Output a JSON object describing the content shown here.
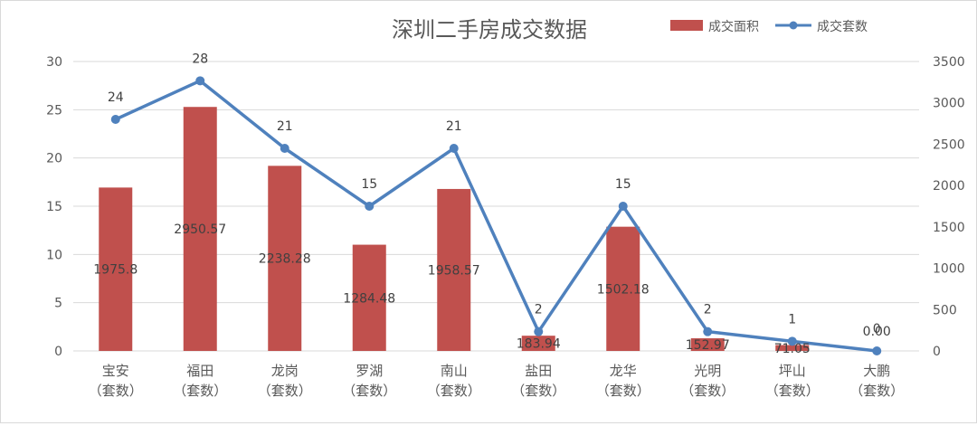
{
  "chart_data": {
    "type": "bar",
    "title": "深圳二手房成交数据",
    "categories": [
      [
        "宝安",
        "（套数）"
      ],
      [
        "福田",
        "（套数）"
      ],
      [
        "龙岗",
        "（套数）"
      ],
      [
        "罗湖",
        "（套数）"
      ],
      [
        "南山",
        "（套数）"
      ],
      [
        "盐田",
        "（套数）"
      ],
      [
        "龙华",
        "（套数）"
      ],
      [
        "光明",
        "（套数）"
      ],
      [
        "坪山",
        "（套数）"
      ],
      [
        "大鹏",
        "（套数）"
      ]
    ],
    "series": [
      {
        "name": "成交面积",
        "type": "bar",
        "axis": "right",
        "color": "#C0504D",
        "values": [
          1975.8,
          2950.57,
          2238.28,
          1284.48,
          1958.57,
          183.94,
          1502.18,
          152.97,
          71.05,
          0.0
        ],
        "labels": [
          "1975.8",
          "2950.57",
          "2238.28",
          "1284.48",
          "1958.57",
          "183.94",
          "1502.18",
          "152.97",
          "71.05",
          "0.00"
        ]
      },
      {
        "name": "成交套数",
        "type": "line",
        "axis": "left",
        "color": "#4F81BD",
        "values": [
          24,
          28,
          21,
          15,
          21,
          2,
          15,
          2,
          1,
          0
        ],
        "labels": [
          "24",
          "28",
          "21",
          "15",
          "21",
          "2",
          "15",
          "2",
          "1",
          "0"
        ]
      }
    ],
    "y_left": {
      "min": 0,
      "max": 30,
      "step": 5,
      "ticks": [
        "0",
        "5",
        "10",
        "15",
        "20",
        "25",
        "30"
      ]
    },
    "y_right": {
      "min": 0,
      "max": 3500,
      "step": 500,
      "ticks": [
        "0",
        "500",
        "1000",
        "1500",
        "2000",
        "2500",
        "3000",
        "3500"
      ]
    },
    "grid": true,
    "legend": "top-right"
  }
}
